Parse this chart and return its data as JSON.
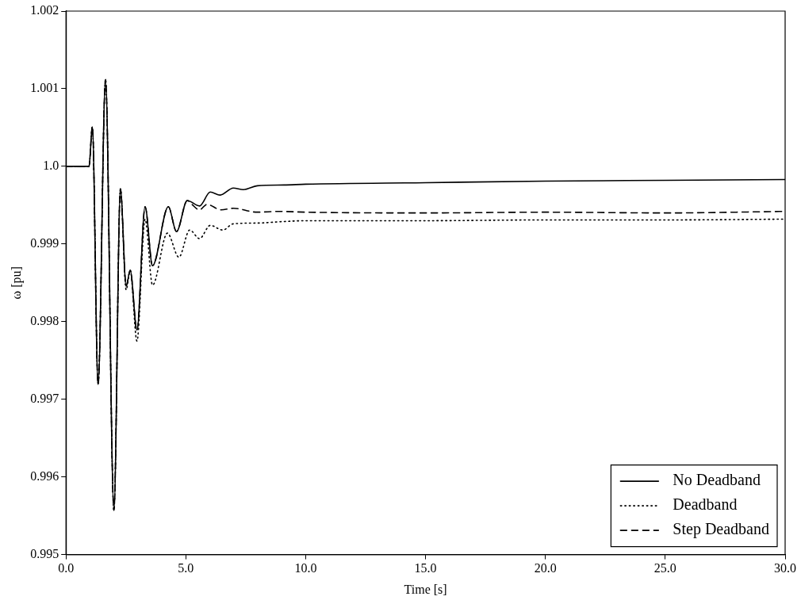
{
  "chart_data": {
    "type": "line",
    "xlabel": "Time [s]",
    "ylabel": "ω [pu]",
    "xlim": [
      0,
      30
    ],
    "ylim": [
      0.995,
      1.002
    ],
    "xticks": [
      {
        "value": 0,
        "label": "0.0"
      },
      {
        "value": 5,
        "label": "5.0"
      },
      {
        "value": 10,
        "label": "10.0"
      },
      {
        "value": 15,
        "label": "15.0"
      },
      {
        "value": 20,
        "label": "20.0"
      },
      {
        "value": 25,
        "label": "25.0"
      },
      {
        "value": 30,
        "label": "30.0"
      }
    ],
    "yticks": [
      0.995,
      0.996,
      0.997,
      0.998,
      0.999,
      {
        "value": 1.0,
        "label": "1.0"
      },
      1.001,
      1.002
    ],
    "grid": false,
    "legend": "bottom right",
    "marker": "none",
    "series": [
      {
        "name": "No Deadband",
        "color": "#000000",
        "line_style": "solid",
        "x": [
          0,
          0.96,
          1.1,
          1.34,
          1.65,
          2.0,
          2.27,
          2.51,
          2.68,
          2.96,
          3.3,
          3.61,
          4.27,
          4.61,
          5.06,
          5.57,
          6.02,
          6.43,
          6.98,
          7.4,
          7.98,
          9.1,
          10,
          15,
          20,
          25,
          30
        ],
        "values": [
          1.0,
          1.0,
          1.00051,
          0.99719,
          1.00112,
          0.99557,
          0.99971,
          0.99846,
          0.99866,
          0.99789,
          0.99948,
          0.99872,
          0.99948,
          0.99916,
          0.99956,
          0.99949,
          0.99967,
          0.99963,
          0.99972,
          0.9997,
          0.99975,
          0.99976,
          0.99977,
          0.99979,
          0.99981,
          0.99982,
          0.99983
        ]
      },
      {
        "name": "Deadband",
        "color": "#000000",
        "line_style": "dotted",
        "x": [
          0,
          0.96,
          1.1,
          1.34,
          1.65,
          2.0,
          2.27,
          2.51,
          2.68,
          2.96,
          3.3,
          3.61,
          4.23,
          4.71,
          5.16,
          5.57,
          6.02,
          6.54,
          6.98,
          7.98,
          9.12,
          10,
          15,
          20,
          25,
          30
        ],
        "values": [
          1.0,
          1.0,
          1.00051,
          0.99719,
          1.00112,
          0.99557,
          0.99971,
          0.99841,
          0.99866,
          0.99775,
          0.99932,
          0.99847,
          0.99914,
          0.99883,
          0.99918,
          0.99907,
          0.99924,
          0.99918,
          0.99926,
          0.99927,
          0.99929,
          0.9993,
          0.9993,
          0.99931,
          0.99931,
          0.99932
        ]
      },
      {
        "name": "Step Deadband",
        "color": "#000000",
        "line_style": "dashed",
        "x": [
          0,
          0.96,
          1.1,
          1.34,
          1.65,
          2.0,
          2.27,
          2.51,
          2.68,
          2.96,
          3.3,
          3.61,
          4.27,
          4.61,
          5.06,
          5.22,
          5.57,
          5.88,
          6.47,
          6.98,
          7.98,
          8.88,
          10,
          15,
          20,
          25,
          30
        ],
        "values": [
          1.0,
          1.0,
          1.00051,
          0.99719,
          1.00112,
          0.99557,
          0.99971,
          0.99846,
          0.99866,
          0.99789,
          0.99948,
          0.99872,
          0.99948,
          0.99916,
          0.99956,
          0.99952,
          0.99944,
          0.99951,
          0.99944,
          0.99946,
          0.99941,
          0.99942,
          0.99941,
          0.9994,
          0.99941,
          0.9994,
          0.99942
        ]
      }
    ]
  }
}
